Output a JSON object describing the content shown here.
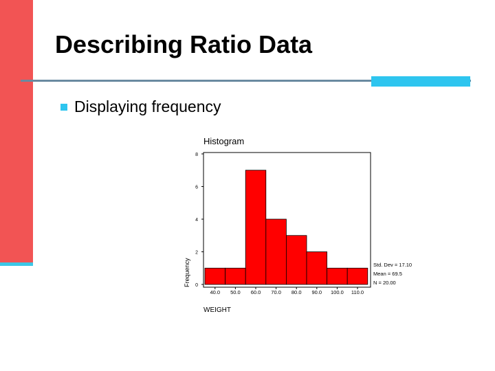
{
  "slide": {
    "title": "Describing Ratio Data",
    "bullet": "Displaying frequency",
    "colors": {
      "left_bar": "#f25454",
      "accent": "#2ec5ef",
      "rule": "#6a8aa0",
      "bar_fill": "#ff0000"
    }
  },
  "chart_data": {
    "type": "bar",
    "title": "Histogram",
    "xlabel": "WEIGHT",
    "ylabel": "Frequency",
    "categories": [
      "40.0",
      "50.0",
      "60.0",
      "70.0",
      "80.0",
      "90.0",
      "100.0",
      "110.0"
    ],
    "values": [
      1,
      1,
      7,
      4,
      3,
      2,
      1,
      1
    ],
    "ylim": [
      0,
      8
    ],
    "y_ticks": [
      "0",
      "2",
      "4",
      "6",
      "8"
    ],
    "stats": [
      "Std. Dev = 17.10",
      "Mean = 69.5",
      "N = 20.00"
    ],
    "grid": false
  }
}
